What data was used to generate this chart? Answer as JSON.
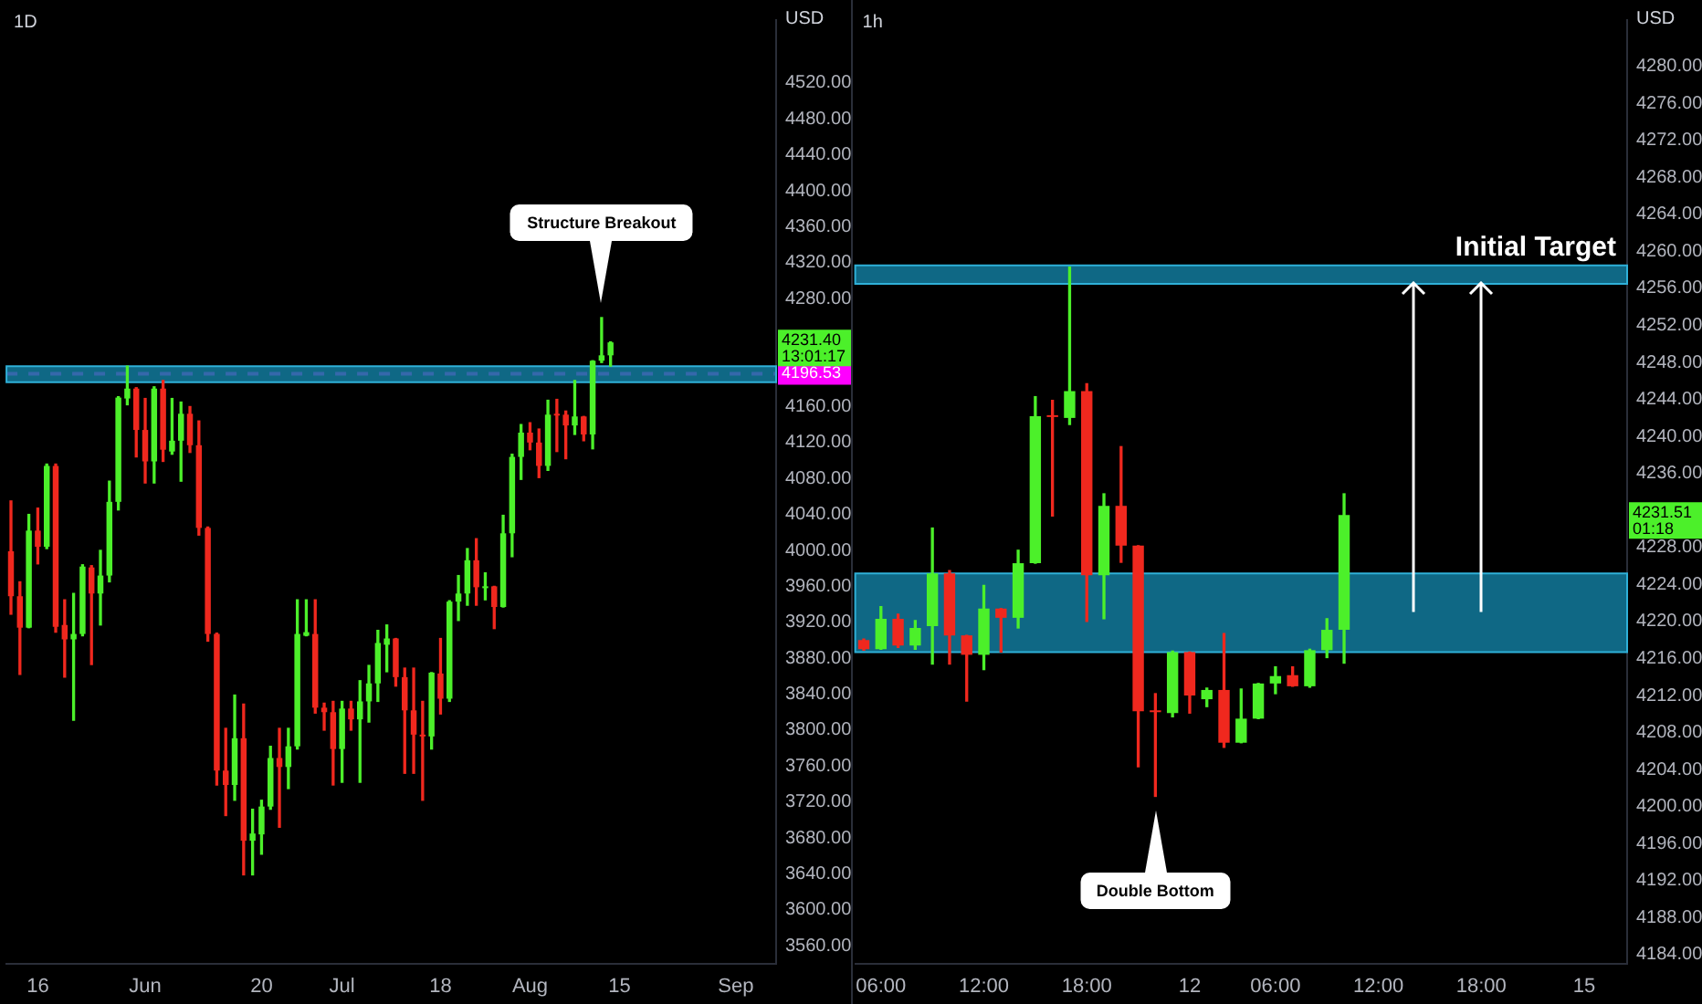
{
  "chart_data": [
    {
      "type": "candlestick",
      "title": "1D",
      "ylabel": "USD",
      "categories": [
        null,
        null,
        null,
        "16",
        null,
        null,
        null,
        null,
        null,
        null,
        null,
        null,
        null,
        null,
        null,
        "Jun",
        null,
        null,
        null,
        null,
        null,
        null,
        null,
        null,
        null,
        null,
        null,
        null,
        "20",
        null,
        null,
        null,
        null,
        null,
        null,
        null,
        null,
        "Jul",
        null,
        null,
        null,
        null,
        null,
        null,
        null,
        null,
        null,
        null,
        "18",
        null,
        null,
        null,
        null,
        null,
        null,
        null,
        null,
        null,
        "Aug",
        null,
        null,
        null,
        null,
        null,
        null,
        null,
        null,
        null,
        "15",
        null,
        null,
        null,
        null,
        null,
        null,
        null,
        null,
        null,
        null,
        null,
        null,
        "Sep",
        null,
        null,
        null,
        null
      ],
      "ohlc": [
        [
          3999,
          4055,
          3929,
          3949
        ],
        [
          3949,
          3965,
          3862,
          3914
        ],
        [
          3914,
          4040,
          3914,
          4022
        ],
        [
          4022,
          4047,
          3985,
          4004
        ],
        [
          4004,
          4096,
          4002,
          4094
        ],
        [
          4094,
          4096,
          3909,
          3915
        ],
        [
          3917,
          3945,
          3859,
          3901
        ],
        [
          3901,
          3952,
          3811,
          3907
        ],
        [
          3907,
          3984,
          3905,
          3982
        ],
        [
          3981,
          3983,
          3873,
          3952
        ],
        [
          3952,
          4000,
          3917,
          3972
        ],
        [
          3972,
          4077,
          3965,
          4054
        ],
        [
          4054,
          4171,
          4045,
          4170
        ],
        [
          4169,
          4205,
          4162,
          4180
        ],
        [
          4180,
          4181,
          4104,
          4134
        ],
        [
          4134,
          4169,
          4075,
          4099
        ],
        [
          4099,
          4182,
          4075,
          4180
        ],
        [
          4180,
          4189,
          4099,
          4112
        ],
        [
          4110,
          4169,
          4107,
          4122
        ],
        [
          4122,
          4165,
          4077,
          4152
        ],
        [
          4152,
          4160,
          4109,
          4117
        ],
        [
          4117,
          4144,
          4017,
          4025
        ],
        [
          4025,
          4026,
          3899,
          3907
        ],
        [
          3907,
          3908,
          3739,
          3755
        ],
        [
          3755,
          3802,
          3705,
          3739
        ],
        [
          3739,
          3839,
          3722,
          3791
        ],
        [
          3791,
          3829,
          3639,
          3677
        ],
        [
          3677,
          3712,
          3639,
          3685
        ],
        [
          3684,
          3722,
          3662,
          3715
        ],
        [
          3715,
          3782,
          3712,
          3769
        ],
        [
          3769,
          3802,
          3692,
          3759
        ],
        [
          3759,
          3802,
          3735,
          3782
        ],
        [
          3782,
          3945,
          3779,
          3907
        ],
        [
          3905,
          3945,
          3905,
          3909
        ],
        [
          3907,
          3945,
          3819,
          3825
        ],
        [
          3825,
          3830,
          3800,
          3820
        ],
        [
          3820,
          3832,
          3739,
          3779
        ],
        [
          3779,
          3832,
          3742,
          3824
        ],
        [
          3824,
          3832,
          3800,
          3812
        ],
        [
          3812,
          3855,
          3742,
          3832
        ],
        [
          3832,
          3872,
          3809,
          3852
        ],
        [
          3852,
          3911,
          3832,
          3897
        ],
        [
          3895,
          3917,
          3865,
          3902
        ],
        [
          3902,
          3902,
          3849,
          3859
        ],
        [
          3859,
          3869,
          3752,
          3822
        ],
        [
          3822,
          3869,
          3752,
          3795
        ],
        [
          3795,
          3832,
          3722,
          3793
        ],
        [
          3793,
          3864,
          3779,
          3864
        ],
        [
          3863,
          3902,
          3818,
          3835
        ],
        [
          3835,
          3944,
          3832,
          3943
        ],
        [
          3943,
          3972,
          3922,
          3952
        ],
        [
          3952,
          4002,
          3939,
          3989
        ],
        [
          3989,
          4013,
          3939,
          3959
        ],
        [
          3958,
          3975,
          3945,
          3960
        ],
        [
          3960,
          3960,
          3913,
          3937
        ],
        [
          3937,
          4039,
          3937,
          4019
        ],
        [
          4019,
          4107,
          3993,
          4104
        ],
        [
          4104,
          4140,
          4079,
          4131
        ],
        [
          4131,
          4142,
          4112,
          4120
        ],
        [
          4120,
          4135,
          4081,
          4094
        ],
        [
          4094,
          4167,
          4089,
          4151
        ],
        [
          4151,
          4168,
          4110,
          4150
        ],
        [
          4151,
          4155,
          4102,
          4139
        ],
        [
          4139,
          4189,
          4129,
          4149
        ],
        [
          4149,
          4149,
          4122,
          4129
        ],
        [
          4129,
          4211,
          4113,
          4211
        ],
        [
          4211,
          4259,
          4209,
          4217
        ],
        [
          4217,
          4232,
          4205,
          4231.4
        ],
        null,
        null,
        null,
        null,
        null,
        null,
        null,
        null,
        null,
        null,
        null,
        null,
        null,
        null,
        null,
        null,
        null,
        null
      ],
      "ylim": [
        3540,
        4590
      ],
      "yticks": [
        {
          "value": 3560,
          "label": "3560.00"
        },
        {
          "value": 3600,
          "label": "3600.00"
        },
        {
          "value": 3640,
          "label": "3640.00"
        },
        {
          "value": 3680,
          "label": "3680.00"
        },
        {
          "value": 3720,
          "label": "3720.00"
        },
        {
          "value": 3760,
          "label": "3760.00"
        },
        {
          "value": 3800,
          "label": "3800.00"
        },
        {
          "value": 3840,
          "label": "3840.00"
        },
        {
          "value": 3880,
          "label": "3880.00"
        },
        {
          "value": 3920,
          "label": "3920.00"
        },
        {
          "value": 3960,
          "label": "3960.00"
        },
        {
          "value": 4000,
          "label": "4000.00"
        },
        {
          "value": 4040,
          "label": "4040.00"
        },
        {
          "value": 4080,
          "label": "4080.00"
        },
        {
          "value": 4120,
          "label": "4120.00"
        },
        {
          "value": 4160,
          "label": "4160.00"
        },
        {
          "value": 4280,
          "label": "4280.00"
        },
        {
          "value": 4320,
          "label": "4320.00"
        },
        {
          "value": 4360,
          "label": "4360.00"
        },
        {
          "value": 4400,
          "label": "4400.00"
        },
        {
          "value": 4440,
          "label": "4440.00"
        },
        {
          "value": 4480,
          "label": "4480.00"
        },
        {
          "value": 4520,
          "label": "4520.00"
        }
      ],
      "ref_lines": [
        {
          "axis": "y",
          "value": 4196.53,
          "label": "4196.53",
          "color": "#ff00ff",
          "line_style": "dashed"
        }
      ],
      "bands": [
        {
          "axis": "y",
          "from": 4187,
          "to": 4205,
          "color": "#127a9c"
        }
      ],
      "annotations": [
        "Structure Breakout",
        "4231.40",
        "13:01:17"
      ]
    },
    {
      "type": "candlestick",
      "title": "1h",
      "ylabel": "USD",
      "categories": [
        null,
        "06:00",
        null,
        null,
        null,
        null,
        null,
        "12:00",
        null,
        null,
        null,
        null,
        null,
        "18:00",
        null,
        null,
        null,
        null,
        null,
        "12",
        null,
        null,
        null,
        null,
        "06:00",
        null,
        null,
        null,
        null,
        null,
        "12:00",
        null,
        null,
        null,
        null,
        null,
        "18:00",
        null,
        null,
        null,
        null,
        null,
        "15",
        null,
        null
      ],
      "ohlc": [
        [
          4218.0,
          4218.1,
          4216.9,
          4217.0
        ],
        [
          4217.0,
          4221.6,
          4217.0,
          4220.3
        ],
        [
          4220.3,
          4220.8,
          4217.2,
          4217.4
        ],
        [
          4217.4,
          4220.1,
          4217.0,
          4219.3
        ],
        [
          4219.5,
          4230.1,
          4215.4,
          4225.2
        ],
        [
          4225.2,
          4225.5,
          4215.4,
          4218.5
        ],
        [
          4218.5,
          4218.5,
          4211.4,
          4216.4
        ],
        [
          4216.4,
          4223.9,
          4214.8,
          4221.4
        ],
        [
          4221.4,
          4221.4,
          4216.7,
          4220.4
        ],
        [
          4220.4,
          4227.7,
          4219.3,
          4226.3
        ],
        [
          4226.3,
          4244.3,
          4226.3,
          4242.2
        ],
        [
          4242.2,
          4243.9,
          4231.4,
          4242.1
        ],
        [
          4242.0,
          4258.3,
          4241.3,
          4244.9
        ],
        [
          4244.9,
          4245.7,
          4220.0,
          4225.0
        ],
        [
          4225.0,
          4233.8,
          4220.3,
          4232.5
        ],
        [
          4232.5,
          4238.9,
          4226.4,
          4228.2
        ],
        [
          4228.2,
          4228.2,
          4204.3,
          4210.3
        ],
        [
          4210.3,
          4212.2,
          4201.1,
          4210.2
        ],
        [
          4210.1,
          4216.8,
          4209.7,
          4216.7
        ],
        [
          4216.7,
          4216.7,
          4210.1,
          4212.0
        ],
        [
          4211.6,
          4212.8,
          4210.8,
          4212.6
        ],
        [
          4212.6,
          4218.7,
          4206.4,
          4206.9
        ],
        [
          4206.9,
          4212.7,
          4206.9,
          4209.5
        ],
        [
          4209.5,
          4213.3,
          4209.5,
          4213.3
        ],
        [
          4213.3,
          4215.1,
          4212.2,
          4214.1
        ],
        [
          4214.2,
          4215.1,
          4213.0,
          4213.0
        ],
        [
          4213.0,
          4217.0,
          4212.9,
          4216.9
        ],
        [
          4216.9,
          4220.3,
          4216.1,
          4219.1
        ],
        [
          4219.1,
          4233.8,
          4215.5,
          4231.51
        ],
        null,
        null,
        null,
        null,
        null,
        null,
        null,
        null,
        null,
        null,
        null,
        null,
        null,
        null,
        null,
        null
      ],
      "ylim": [
        4183,
        4285
      ],
      "yticks": [
        {
          "value": 4184,
          "label": "4184.00"
        },
        {
          "value": 4188,
          "label": "4188.00"
        },
        {
          "value": 4192,
          "label": "4192.00"
        },
        {
          "value": 4196,
          "label": "4196.00"
        },
        {
          "value": 4200,
          "label": "4200.00"
        },
        {
          "value": 4204,
          "label": "4204.00"
        },
        {
          "value": 4208,
          "label": "4208.00"
        },
        {
          "value": 4212,
          "label": "4212.00"
        },
        {
          "value": 4216,
          "label": "4216.00"
        },
        {
          "value": 4220,
          "label": "4220.00"
        },
        {
          "value": 4224,
          "label": "4224.00"
        },
        {
          "value": 4228,
          "label": "4228.00"
        },
        {
          "value": 4236,
          "label": "4236.00"
        },
        {
          "value": 4240,
          "label": "4240.00"
        },
        {
          "value": 4244,
          "label": "4244.00"
        },
        {
          "value": 4248,
          "label": "4248.00"
        },
        {
          "value": 4252,
          "label": "4252.00"
        },
        {
          "value": 4256,
          "label": "4256.00"
        },
        {
          "value": 4260,
          "label": "4260.00"
        },
        {
          "value": 4264,
          "label": "4264.00"
        },
        {
          "value": 4268,
          "label": "4268.00"
        },
        {
          "value": 4272,
          "label": "4272.00"
        },
        {
          "value": 4276,
          "label": "4276.00"
        },
        {
          "value": 4280,
          "label": "4280.00"
        }
      ],
      "bands": [
        {
          "axis": "y",
          "from": 4256.5,
          "to": 4258.5,
          "label": "Initial Target",
          "color": "#127a9c"
        },
        {
          "axis": "y",
          "from": 4216.7,
          "to": 4225.2,
          "color": "#127a9c"
        }
      ],
      "annotations": [
        "Double Bottom",
        "4231.51",
        "01:18"
      ]
    }
  ]
}
